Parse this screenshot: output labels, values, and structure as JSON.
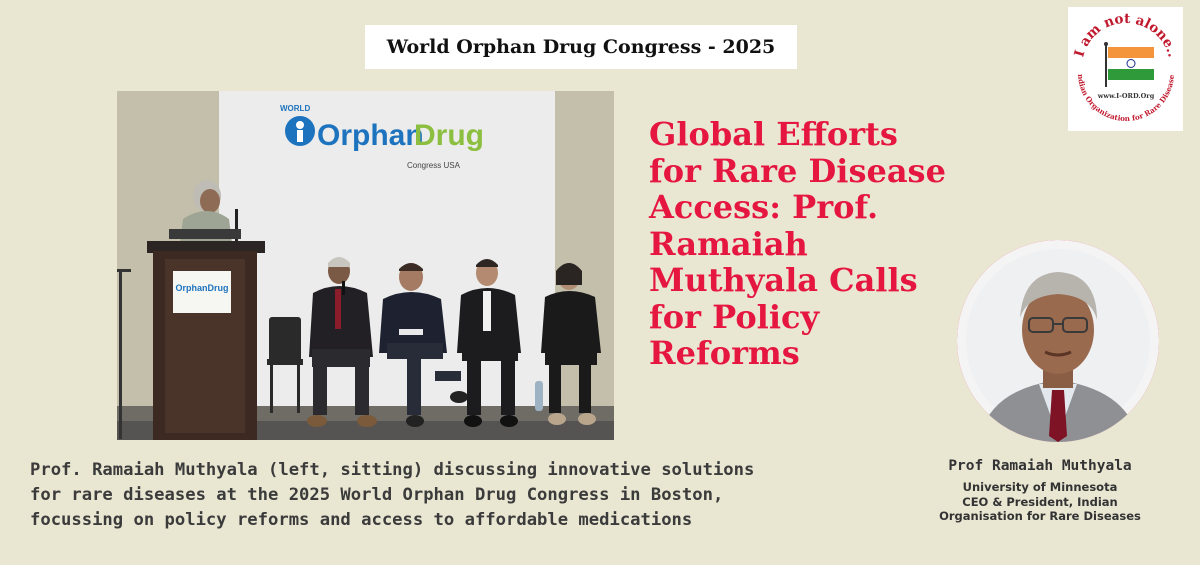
{
  "banner": {
    "title": "World Orphan Drug Congress - 2025"
  },
  "logo": {
    "tagline": "I am not alone..",
    "website": "www.I-ORD.Org",
    "org_name": "Indian Organization for Rare Diseases"
  },
  "photo": {
    "backdrop_small": "WORLD",
    "backdrop_brand_1": "Orphan",
    "backdrop_brand_2": "Drug",
    "backdrop_sub": "Congress USA",
    "podium_brand": "OrphanDrug"
  },
  "headline": {
    "lines": [
      "Global Efforts",
      "for Rare Disease",
      "Access: Prof.",
      "Ramaiah",
      "Muthyala Calls",
      "for Policy",
      "Reforms"
    ]
  },
  "caption": {
    "lines": [
      "Prof. Ramaiah Muthyala (left, sitting) discussing innovative solutions",
      "for rare diseases at the 2025 World Orphan Drug Congress in Boston,",
      "focussing on policy reforms and access to affordable medications"
    ]
  },
  "person": {
    "name": "Prof Ramaiah Muthyala",
    "role_lines": [
      "University of Minnesota",
      "CEO & President, Indian",
      "Organisation for Rare Diseases"
    ]
  },
  "colors": {
    "background": "#e9e6d2",
    "headline": "#e5163f",
    "brand_blue": "#1e73be",
    "brand_green": "#8cbf3f"
  }
}
